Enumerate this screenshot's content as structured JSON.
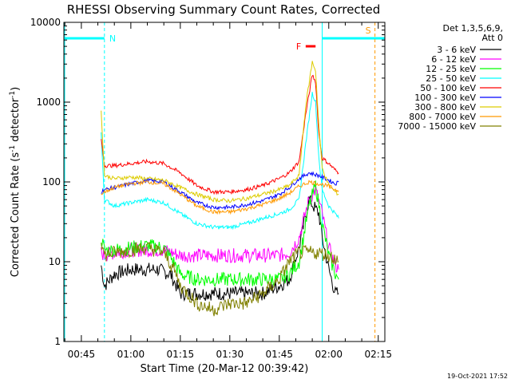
{
  "chart_data": {
    "type": "line",
    "title": "RHESSI Observing Summary Count Rates, Corrected",
    "xlabel": "Start Time (20-Mar-12 00:39:42)",
    "ylabel": "Corrected Count Rate (s",
    "ylabel_sup1": "-1",
    "ylabel_mid": " detector",
    "ylabel_sup2": "-1",
    "ylabel_end": ")",
    "y_scale": "log",
    "ylim": [
      1,
      10000
    ],
    "xlim": [
      "00:39:42",
      "02:17:00"
    ],
    "x_ticks": [
      "00:45",
      "01:00",
      "01:15",
      "01:30",
      "01:45",
      "02:00",
      "02:15"
    ],
    "y_ticks": [
      "1",
      "10",
      "100",
      "1000",
      "10000"
    ],
    "legend_title_1": "Det 1,3,5,6,9,",
    "legend_title_2": "Att 0",
    "legend_placement": "right, outside plot",
    "timestamp": "19-Oct-2021 17:52",
    "annotations": {
      "night_label": "N",
      "saa_label": "S",
      "flare_label": "F",
      "night_start": "00:52",
      "saa_start": "02:10",
      "saa_end": "02:14",
      "flare_start": "01:53",
      "flare_end": "01:56",
      "colors": {
        "night": "#00ffff",
        "saa": "#ff9900",
        "flare": "#ff0000"
      }
    },
    "series": [
      {
        "name": "3 - 6 keV",
        "color": "#000000",
        "x": [
          "00:51",
          "00:52",
          "00:55",
          "01:00",
          "01:05",
          "01:08",
          "01:12",
          "01:15",
          "01:20",
          "01:25",
          "01:30",
          "01:35",
          "01:40",
          "01:45",
          "01:48",
          "01:51",
          "01:54",
          "01:57",
          "01:58",
          "02:00",
          "02:02",
          "02:03"
        ],
        "y": [
          9,
          5,
          7,
          8,
          8,
          8,
          7,
          4,
          4,
          4,
          4,
          4,
          4,
          5,
          6,
          15,
          60,
          40,
          20,
          8,
          4,
          4
        ]
      },
      {
        "name": "6 - 12 keV",
        "color": "#ff00ff",
        "x": [
          "00:51",
          "00:52",
          "00:55",
          "01:00",
          "01:05",
          "01:10",
          "01:15",
          "01:20",
          "01:25",
          "01:30",
          "01:35",
          "01:40",
          "01:45",
          "01:48",
          "01:51",
          "01:54",
          "01:56",
          "01:58",
          "02:00",
          "02:02",
          "02:03"
        ],
        "y": [
          13,
          12,
          13,
          14,
          14,
          14,
          12,
          12,
          12,
          12,
          12,
          12,
          12,
          13,
          20,
          60,
          80,
          40,
          15,
          9,
          8
        ]
      },
      {
        "name": "12 - 25 keV",
        "color": "#00ff00",
        "x": [
          "00:51",
          "00:52",
          "00:55",
          "01:00",
          "01:05",
          "01:10",
          "01:13",
          "01:15",
          "01:20",
          "01:25",
          "01:30",
          "01:35",
          "01:40",
          "01:45",
          "01:48",
          "01:51",
          "01:54",
          "01:56",
          "01:58",
          "02:00",
          "02:02",
          "02:03"
        ],
        "y": [
          20,
          14,
          14,
          15,
          16,
          15,
          10,
          7,
          6,
          6,
          6,
          6,
          6,
          6,
          7,
          10,
          50,
          90,
          30,
          12,
          7,
          6
        ]
      },
      {
        "name": "25 - 50 keV",
        "color": "#00ffff",
        "x": [
          "00:51",
          "00:52",
          "00:55",
          "01:00",
          "01:05",
          "01:10",
          "01:15",
          "01:20",
          "01:25",
          "01:30",
          "01:35",
          "01:40",
          "01:45",
          "01:48",
          "01:51",
          "01:53",
          "01:55",
          "01:56",
          "01:57",
          "01:58",
          "02:00",
          "02:02",
          "02:03"
        ],
        "y": [
          400,
          60,
          50,
          55,
          60,
          55,
          40,
          30,
          27,
          27,
          30,
          35,
          40,
          45,
          60,
          300,
          1300,
          1000,
          200,
          80,
          50,
          40,
          35
        ]
      },
      {
        "name": "50 - 100 keV",
        "color": "#ff0000",
        "x": [
          "00:51",
          "00:52",
          "00:55",
          "01:00",
          "01:05",
          "01:10",
          "01:15",
          "01:20",
          "01:25",
          "01:30",
          "01:35",
          "01:40",
          "01:45",
          "01:48",
          "01:51",
          "01:53",
          "01:55",
          "01:56",
          "01:57",
          "01:58",
          "02:00",
          "02:02",
          "02:03"
        ],
        "y": [
          350,
          160,
          160,
          170,
          180,
          170,
          130,
          90,
          75,
          75,
          80,
          90,
          110,
          130,
          180,
          700,
          2200,
          1800,
          400,
          200,
          170,
          140,
          130
        ]
      },
      {
        "name": "100 - 300 keV",
        "color": "#0000ff",
        "x": [
          "00:51",
          "00:52",
          "00:55",
          "01:00",
          "01:05",
          "01:10",
          "01:15",
          "01:20",
          "01:25",
          "01:30",
          "01:35",
          "01:40",
          "01:45",
          "01:48",
          "01:51",
          "01:54",
          "01:57",
          "02:00",
          "02:02",
          "02:03"
        ],
        "y": [
          75,
          80,
          85,
          95,
          105,
          100,
          75,
          55,
          48,
          48,
          52,
          58,
          70,
          85,
          110,
          130,
          120,
          105,
          95,
          100
        ]
      },
      {
        "name": "300 - 800 keV",
        "color": "#ddcc00",
        "x": [
          "00:51",
          "00:52",
          "00:55",
          "01:00",
          "01:05",
          "01:10",
          "01:15",
          "01:20",
          "01:25",
          "01:30",
          "01:35",
          "01:40",
          "01:45",
          "01:48",
          "01:51",
          "01:53",
          "01:55",
          "01:56",
          "01:57",
          "01:58",
          "02:00",
          "02:02",
          "02:03"
        ],
        "y": [
          800,
          120,
          110,
          115,
          110,
          105,
          85,
          70,
          60,
          58,
          62,
          70,
          80,
          90,
          120,
          900,
          3200,
          2500,
          500,
          150,
          90,
          75,
          70
        ]
      },
      {
        "name": "800 - 7000 keV",
        "color": "#ff9900",
        "x": [
          "00:51",
          "00:52",
          "00:55",
          "01:00",
          "01:05",
          "01:10",
          "01:15",
          "01:20",
          "01:25",
          "01:30",
          "01:35",
          "01:40",
          "01:45",
          "01:48",
          "01:51",
          "01:54",
          "01:57",
          "02:00",
          "02:02",
          "02:03"
        ],
        "y": [
          70,
          75,
          85,
          95,
          100,
          95,
          70,
          50,
          42,
          42,
          46,
          52,
          62,
          72,
          88,
          100,
          95,
          88,
          80,
          78
        ]
      },
      {
        "name": "7000 - 15000 keV",
        "color": "#808000",
        "x": [
          "00:51",
          "00:52",
          "00:55",
          "01:00",
          "01:05",
          "01:10",
          "01:13",
          "01:15",
          "01:20",
          "01:25",
          "01:30",
          "01:35",
          "01:40",
          "01:45",
          "01:48",
          "01:51",
          "01:54",
          "01:57",
          "02:00",
          "02:02",
          "02:03"
        ],
        "y": [
          20,
          12,
          13,
          14,
          15,
          13,
          8,
          5,
          3,
          2.5,
          3,
          3,
          4,
          6,
          10,
          13,
          13,
          13,
          12,
          11,
          10
        ]
      }
    ]
  }
}
